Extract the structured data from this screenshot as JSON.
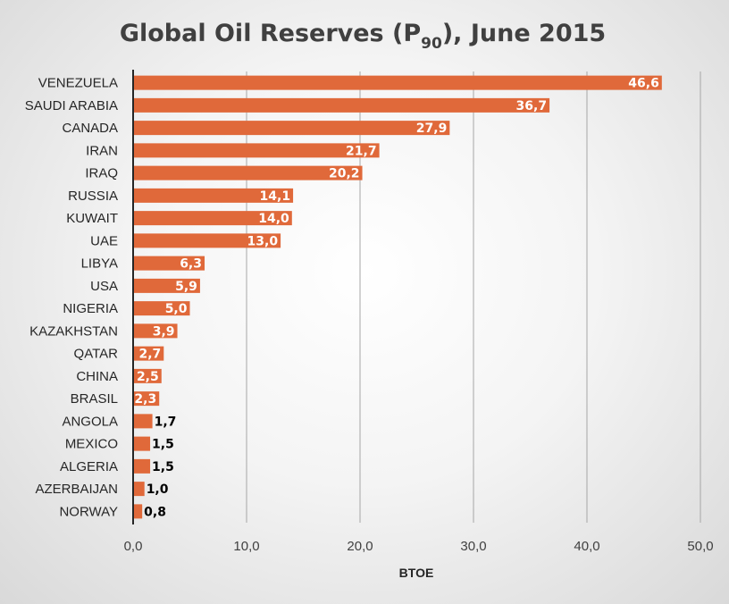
{
  "chart_data": {
    "type": "bar",
    "orientation": "horizontal",
    "title": "Global Oil Reserves (P",
    "title_subscript": "90",
    "title_suffix": "), June 2015",
    "xlabel": "BTOE",
    "xlim": [
      0,
      50
    ],
    "ticks": [
      0,
      10,
      20,
      30,
      40,
      50
    ],
    "tick_labels": [
      "0,0",
      "10,0",
      "20,0",
      "30,0",
      "40,0",
      "50,0"
    ],
    "grid": "vertical",
    "bar_color": "#e0693a",
    "categories": [
      "VENEZUELA",
      "SAUDI ARABIA",
      "CANADA",
      "IRAN",
      "IRAQ",
      "RUSSIA",
      "KUWAIT",
      "UAE",
      "LIBYA",
      "USA",
      "NIGERIA",
      "KAZAKHSTAN",
      "QATAR",
      "CHINA",
      "BRASIL",
      "ANGOLA",
      "MEXICO",
      "ALGERIA",
      "AZERBAIJAN",
      "NORWAY"
    ],
    "values": [
      46.6,
      36.7,
      27.9,
      21.7,
      20.2,
      14.1,
      14.0,
      13.0,
      6.3,
      5.9,
      5.0,
      3.9,
      2.7,
      2.5,
      2.3,
      1.7,
      1.5,
      1.5,
      1.0,
      0.8
    ],
    "value_labels": [
      "46,6",
      "36,7",
      "27,9",
      "21,7",
      "20,2",
      "14,1",
      "14,0",
      "13,0",
      "6,3",
      "5,9",
      "5,0",
      "3,9",
      "2,7",
      "2,5",
      "2,3",
      "1,7",
      "1,5",
      "1,5",
      "1,0",
      "0,8"
    ]
  }
}
